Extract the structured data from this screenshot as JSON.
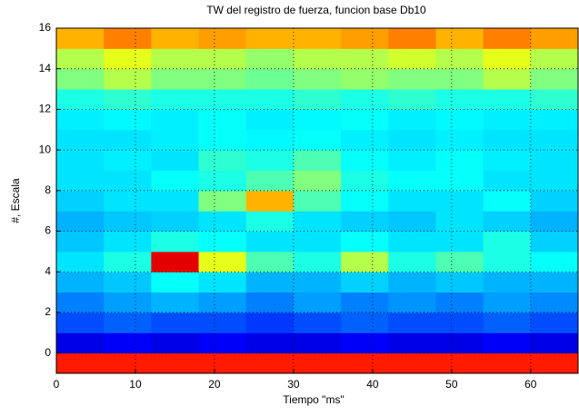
{
  "chart_data": {
    "type": "heatmap",
    "title": "TW del registro de fuerza, funcion base Db10",
    "x_label": "Tiempo \"ms\"",
    "y_label": "#, Escala",
    "xlim": [
      0,
      66
    ],
    "ylim": [
      -1,
      16
    ],
    "xticks": [
      0,
      10,
      20,
      30,
      40,
      50,
      60
    ],
    "yticks": [
      0,
      2,
      4,
      6,
      8,
      10,
      12,
      14,
      16
    ],
    "grid": true,
    "colormap": "jet",
    "z": [
      [
        0.85,
        0.85,
        0.85,
        0.85,
        0.85,
        0.85,
        0.85,
        0.85,
        0.85,
        0.85,
        0.85
      ],
      [
        0.1,
        0.12,
        0.1,
        0.12,
        0.1,
        0.1,
        0.12,
        0.1,
        0.1,
        0.12,
        0.1
      ],
      [
        0.2,
        0.22,
        0.2,
        0.2,
        0.18,
        0.2,
        0.22,
        0.2,
        0.2,
        0.22,
        0.2
      ],
      [
        0.25,
        0.28,
        0.3,
        0.28,
        0.25,
        0.28,
        0.25,
        0.27,
        0.25,
        0.28,
        0.26
      ],
      [
        0.3,
        0.32,
        0.38,
        0.35,
        0.3,
        0.3,
        0.33,
        0.3,
        0.32,
        0.3,
        0.3
      ],
      [
        0.35,
        0.4,
        0.9,
        0.6,
        0.45,
        0.4,
        0.55,
        0.4,
        0.45,
        0.4,
        0.38
      ],
      [
        0.32,
        0.35,
        0.4,
        0.38,
        0.35,
        0.35,
        0.38,
        0.35,
        0.35,
        0.4,
        0.33
      ],
      [
        0.3,
        0.32,
        0.33,
        0.35,
        0.4,
        0.35,
        0.33,
        0.32,
        0.35,
        0.33,
        0.3
      ],
      [
        0.33,
        0.35,
        0.35,
        0.5,
        0.7,
        0.45,
        0.38,
        0.35,
        0.35,
        0.38,
        0.33
      ],
      [
        0.35,
        0.35,
        0.38,
        0.4,
        0.45,
        0.5,
        0.4,
        0.38,
        0.38,
        0.35,
        0.35
      ],
      [
        0.35,
        0.36,
        0.35,
        0.42,
        0.4,
        0.45,
        0.38,
        0.36,
        0.38,
        0.36,
        0.35
      ],
      [
        0.35,
        0.35,
        0.36,
        0.38,
        0.37,
        0.38,
        0.36,
        0.35,
        0.36,
        0.35,
        0.35
      ],
      [
        0.36,
        0.37,
        0.36,
        0.38,
        0.36,
        0.37,
        0.38,
        0.36,
        0.37,
        0.36,
        0.36
      ],
      [
        0.4,
        0.42,
        0.4,
        0.4,
        0.4,
        0.42,
        0.4,
        0.42,
        0.4,
        0.4,
        0.42
      ],
      [
        0.5,
        0.55,
        0.5,
        0.5,
        0.48,
        0.5,
        0.52,
        0.5,
        0.5,
        0.55,
        0.5
      ],
      [
        0.55,
        0.6,
        0.55,
        0.55,
        0.52,
        0.55,
        0.55,
        0.58,
        0.55,
        0.6,
        0.55
      ],
      [
        0.7,
        0.75,
        0.7,
        0.72,
        0.7,
        0.7,
        0.72,
        0.75,
        0.7,
        0.75,
        0.72
      ]
    ]
  }
}
